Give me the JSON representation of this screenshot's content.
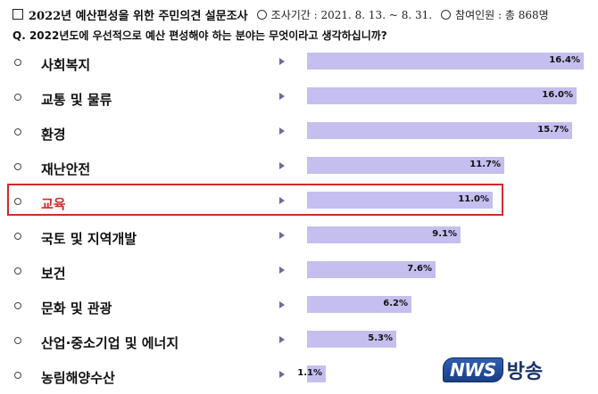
{
  "header": {
    "title": "2022년 예산편성을 위한 주민의견 설문조사",
    "period": "조사기간 : 2021. 8. 13. ~ 8. 31.",
    "participants": "참여인원 : 총 868명"
  },
  "question": "Q. 2022년도에 우선적으로 예산 편성해야 하는 분야는 무엇이라고 생각하십니까?",
  "highlight_index": 4,
  "colors": {
    "bar": "#c4bfef",
    "highlight": "#d22a2a",
    "arrow": "#6f6a9e"
  },
  "chart_data": {
    "type": "bar",
    "orientation": "horizontal",
    "categories": [
      "사회복지",
      "교통 및 물류",
      "환경",
      "재난안전",
      "교육",
      "국토 및 지역개발",
      "보건",
      "문화 및 관광",
      "산업·중소기업 및 에너지",
      "농림해양수산"
    ],
    "values": [
      16.4,
      16.0,
      15.7,
      11.7,
      11.0,
      9.1,
      7.6,
      6.2,
      5.3,
      1.1
    ],
    "value_labels": [
      "16.4%",
      "16.0%",
      "15.7%",
      "11.7%",
      "11.0%",
      "9.1%",
      "7.6%",
      "6.2%",
      "5.3%",
      "1.1%"
    ],
    "unit": "%",
    "xlim": [
      0,
      16.4
    ],
    "grid": false
  },
  "logo": {
    "brand": "NWS",
    "suffix": "방송"
  }
}
